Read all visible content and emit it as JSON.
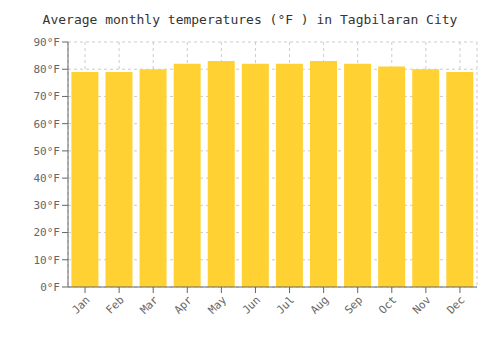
{
  "chart_data": {
    "type": "bar",
    "title": "Average monthly temperatures (°F ) in Tagbilaran City",
    "categories": [
      "Jan",
      "Feb",
      "Mar",
      "Apr",
      "May",
      "Jun",
      "Jul",
      "Aug",
      "Sep",
      "Oct",
      "Nov",
      "Dec"
    ],
    "values": [
      79,
      79,
      80,
      82,
      83,
      82,
      82,
      83,
      82,
      81,
      80,
      79
    ],
    "color": "#FFD133",
    "ylim": [
      0,
      90
    ],
    "yticks": [
      {
        "value": 0,
        "label": "0°F"
      },
      {
        "value": 10,
        "label": "10°F"
      },
      {
        "value": 20,
        "label": "20°F"
      },
      {
        "value": 30,
        "label": "30°F"
      },
      {
        "value": 40,
        "label": "40°F"
      },
      {
        "value": 50,
        "label": "50°F"
      },
      {
        "value": 60,
        "label": "60°F"
      },
      {
        "value": 70,
        "label": "70°F"
      },
      {
        "value": 80,
        "label": "80°F"
      },
      {
        "value": 90,
        "label": "90°F"
      }
    ],
    "grid": true
  }
}
